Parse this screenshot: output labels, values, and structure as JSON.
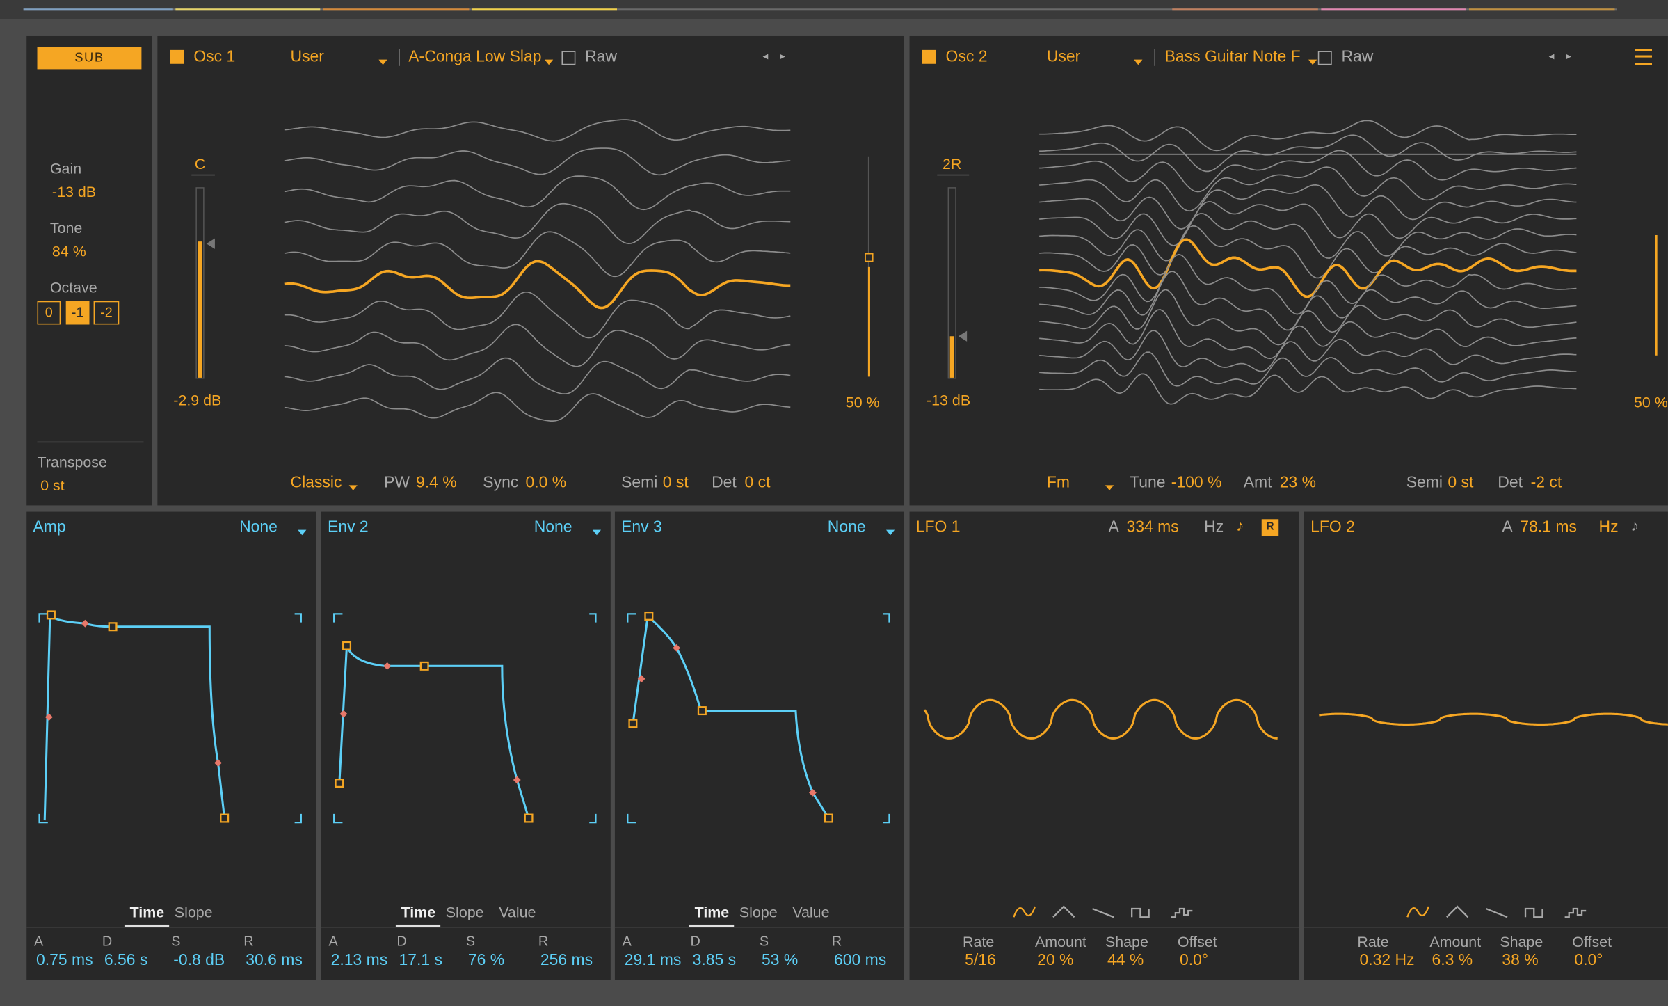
{
  "colors": {
    "accent": "#f5a623",
    "env": "#5ccff6",
    "panel": "#282828",
    "bg": "#4b4b4b",
    "wave": "#9a9a9a",
    "text": "#a8a8a8"
  },
  "sub": {
    "label": "SUB",
    "gain_label": "Gain",
    "gain": "-13 dB",
    "tone_label": "Tone",
    "tone": "84 %",
    "octave_label": "Octave",
    "octave_options": [
      "0",
      "-1",
      "-2"
    ],
    "octave_selected": "-1",
    "transpose_label": "Transpose",
    "transpose": "0 st"
  },
  "osc1": {
    "title": "Osc 1",
    "bank": "User",
    "sample": "A-Conga Low Slap",
    "raw_label": "Raw",
    "level_marker": "C",
    "level": "-2.9 dB",
    "level_fraction": 0.72,
    "position": "50 %",
    "position_fraction": 0.5,
    "mode": "Classic",
    "pw_label": "PW",
    "pw": "9.4 %",
    "sync_label": "Sync",
    "sync": "0.0 %",
    "semi_label": "Semi",
    "semi": "0 st",
    "det_label": "Det",
    "det": "0 ct"
  },
  "osc2": {
    "title": "Osc 2",
    "bank": "User",
    "sample": "Bass Guitar Note F",
    "raw_label": "Raw",
    "level_marker": "2R",
    "level": "-13 dB",
    "level_fraction": 0.22,
    "position": "50 %",
    "position_fraction": 0.5,
    "mode": "Fm",
    "tune_label": "Tune",
    "tune": "-100 %",
    "amt_label": "Amt",
    "amt": "23 %",
    "semi_label": "Semi",
    "semi": "0 st",
    "det_label": "Det",
    "det": "-2 ct"
  },
  "envs": [
    {
      "title": "Amp",
      "target": "None",
      "tabs": [
        "Time",
        "Slope"
      ],
      "active_tab": "Time",
      "params": [
        {
          "label": "A",
          "value": "0.75 ms"
        },
        {
          "label": "D",
          "value": "6.56 s"
        },
        {
          "label": "S",
          "value": "-0.8 dB"
        },
        {
          "label": "R",
          "value": "30.6 ms"
        }
      ]
    },
    {
      "title": "Env 2",
      "target": "None",
      "tabs": [
        "Time",
        "Slope",
        "Value"
      ],
      "active_tab": "Time",
      "params": [
        {
          "label": "A",
          "value": "2.13 ms"
        },
        {
          "label": "D",
          "value": "17.1 s"
        },
        {
          "label": "S",
          "value": "76 %"
        },
        {
          "label": "R",
          "value": "256 ms"
        }
      ]
    },
    {
      "title": "Env 3",
      "target": "None",
      "tabs": [
        "Time",
        "Slope",
        "Value"
      ],
      "active_tab": "Time",
      "params": [
        {
          "label": "A",
          "value": "29.1 ms"
        },
        {
          "label": "D",
          "value": "3.85 s"
        },
        {
          "label": "S",
          "value": "53 %"
        },
        {
          "label": "R",
          "value": "600 ms"
        }
      ]
    }
  ],
  "lfos": [
    {
      "title": "LFO 1",
      "a_label": "A",
      "attack": "334 ms",
      "hz_label": "Hz",
      "note_icon": "♪",
      "retrig": "R",
      "params": [
        {
          "label": "Rate",
          "value": "5/16"
        },
        {
          "label": "Amount",
          "value": "20 %"
        },
        {
          "label": "Shape",
          "value": "44 %"
        },
        {
          "label": "Offset",
          "value": "0.0°"
        }
      ]
    },
    {
      "title": "LFO 2",
      "a_label": "A",
      "attack": "78.1 ms",
      "hz_label": "Hz",
      "note_icon": "♪",
      "params": [
        {
          "label": "Rate",
          "value": "0.32 Hz"
        },
        {
          "label": "Amount",
          "value": "6.3 %"
        },
        {
          "label": "Shape",
          "value": "38 %"
        },
        {
          "label": "Offset",
          "value": "0.0°"
        }
      ]
    }
  ],
  "lfo_waveforms": [
    "sine-wave-icon",
    "triangle-wave-icon",
    "saw-wave-icon",
    "square-wave-icon",
    "random-wave-icon"
  ]
}
